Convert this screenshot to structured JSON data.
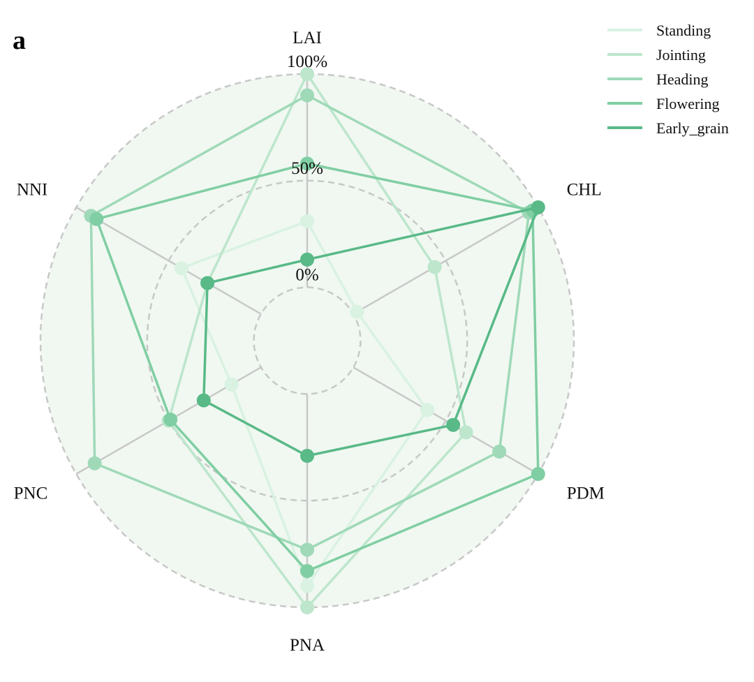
{
  "panel_label": "a",
  "chart_data": {
    "type": "radar",
    "axes": [
      "LAI",
      "CHL",
      "PDM",
      "PNA",
      "PNC",
      "NNI"
    ],
    "radial_tick_labels": [
      "0%",
      "50%",
      "100%"
    ],
    "radial_ticks": [
      0,
      50,
      100
    ],
    "rlim": [
      -25,
      100
    ],
    "grid": true,
    "legend_position": "top-right",
    "series": [
      {
        "name": "Standing",
        "color": "#d9f2e2",
        "values": [
          31,
          2,
          40,
          90,
          16,
          43
        ]
      },
      {
        "name": "Jointing",
        "color": "#bde6cc",
        "values": [
          100,
          44,
          61,
          100,
          50,
          29
        ]
      },
      {
        "name": "Heading",
        "color": "#9fd9b8",
        "values": [
          90,
          95,
          79,
          73,
          90,
          92
        ]
      },
      {
        "name": "Flowering",
        "color": "#80cea3",
        "values": [
          58,
          97,
          100,
          83,
          49,
          89
        ]
      },
      {
        "name": "Early_grain",
        "color": "#59b987",
        "values": [
          13,
          100,
          54,
          29,
          31,
          29
        ]
      }
    ]
  }
}
